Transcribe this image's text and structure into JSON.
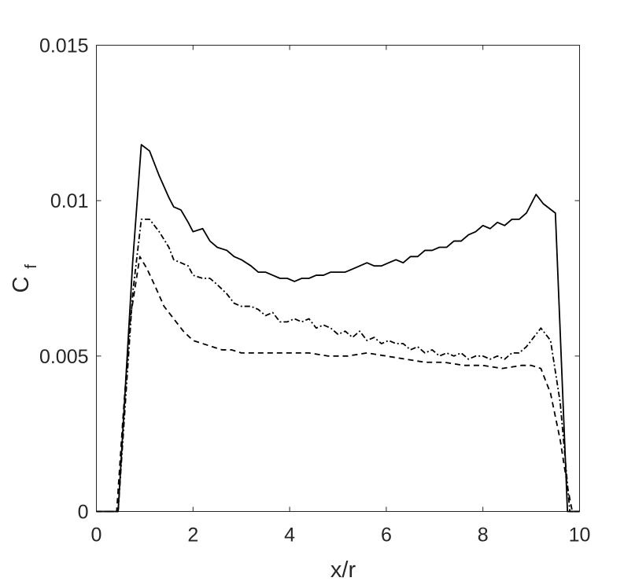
{
  "chart_data": {
    "type": "line",
    "title": "",
    "xlabel": "x/r",
    "ylabel_main": "C",
    "ylabel_sub": "f",
    "xlim": [
      0,
      10
    ],
    "ylim": [
      0,
      0.015
    ],
    "xticks": [
      0,
      2,
      4,
      6,
      8,
      10
    ],
    "xtick_labels": [
      "0",
      "2",
      "4",
      "6",
      "8",
      "10"
    ],
    "yticks": [
      0,
      0.005,
      0.01,
      0.015
    ],
    "ytick_labels": [
      "0",
      "0.005",
      "0.01",
      "0.015"
    ],
    "grid": false,
    "legend": "none",
    "line_color": "#000000",
    "series": [
      {
        "style": "solid",
        "x": [
          0.0,
          0.45,
          0.6,
          0.75,
          0.93,
          1.1,
          1.3,
          1.5,
          1.6,
          1.75,
          1.9,
          2.0,
          2.2,
          2.35,
          2.5,
          2.7,
          2.85,
          3.0,
          3.2,
          3.35,
          3.5,
          3.65,
          3.8,
          3.95,
          4.1,
          4.25,
          4.4,
          4.55,
          4.7,
          4.85,
          5.0,
          5.15,
          5.3,
          5.45,
          5.6,
          5.75,
          5.9,
          6.05,
          6.2,
          6.35,
          6.5,
          6.65,
          6.8,
          6.95,
          7.1,
          7.25,
          7.4,
          7.55,
          7.7,
          7.85,
          8.0,
          8.15,
          8.3,
          8.45,
          8.6,
          8.75,
          8.9,
          9.0,
          9.1,
          9.25,
          9.5,
          9.75,
          10.0
        ],
        "y": [
          0.0,
          0.0,
          0.004,
          0.008,
          0.0118,
          0.0116,
          0.0108,
          0.0101,
          0.0098,
          0.0097,
          0.0093,
          0.009,
          0.0091,
          0.0087,
          0.0085,
          0.0084,
          0.0082,
          0.0081,
          0.0079,
          0.0077,
          0.0077,
          0.0076,
          0.0075,
          0.0075,
          0.0074,
          0.0075,
          0.0075,
          0.0076,
          0.0076,
          0.0077,
          0.0077,
          0.0077,
          0.0078,
          0.0079,
          0.008,
          0.0079,
          0.0079,
          0.008,
          0.0081,
          0.008,
          0.0082,
          0.0082,
          0.0084,
          0.0084,
          0.0085,
          0.0085,
          0.0087,
          0.0087,
          0.0089,
          0.009,
          0.0092,
          0.0091,
          0.0093,
          0.0092,
          0.0094,
          0.0094,
          0.0096,
          0.0099,
          0.0102,
          0.0099,
          0.0096,
          0.0,
          0.0
        ]
      },
      {
        "style": "dashdot",
        "x": [
          0.0,
          0.45,
          0.6,
          0.75,
          0.93,
          1.1,
          1.3,
          1.5,
          1.6,
          1.75,
          1.9,
          2.0,
          2.2,
          2.35,
          2.5,
          2.7,
          2.85,
          3.0,
          3.2,
          3.35,
          3.5,
          3.65,
          3.8,
          3.95,
          4.1,
          4.25,
          4.4,
          4.55,
          4.7,
          4.85,
          5.0,
          5.15,
          5.3,
          5.45,
          5.6,
          5.75,
          5.9,
          6.05,
          6.2,
          6.35,
          6.5,
          6.65,
          6.8,
          6.95,
          7.1,
          7.25,
          7.4,
          7.55,
          7.7,
          7.85,
          8.0,
          8.15,
          8.3,
          8.45,
          8.6,
          8.75,
          8.9,
          9.0,
          9.1,
          9.2,
          9.4,
          9.6,
          9.8,
          10.0
        ],
        "y": [
          0.0,
          0.0,
          0.0035,
          0.007,
          0.0094,
          0.0094,
          0.009,
          0.0085,
          0.0081,
          0.008,
          0.0079,
          0.0076,
          0.0075,
          0.0075,
          0.0073,
          0.007,
          0.0067,
          0.0066,
          0.0066,
          0.0065,
          0.0063,
          0.0064,
          0.0061,
          0.0061,
          0.0062,
          0.0061,
          0.0062,
          0.0059,
          0.006,
          0.0059,
          0.0057,
          0.0058,
          0.0056,
          0.0058,
          0.0055,
          0.0056,
          0.0054,
          0.0055,
          0.0054,
          0.0054,
          0.0052,
          0.0053,
          0.0051,
          0.0052,
          0.005,
          0.0051,
          0.005,
          0.0051,
          0.0049,
          0.005,
          0.005,
          0.0049,
          0.005,
          0.0049,
          0.0051,
          0.0051,
          0.0053,
          0.0055,
          0.0057,
          0.0059,
          0.0055,
          0.0035,
          0.0,
          0.0
        ]
      },
      {
        "style": "dashed",
        "x": [
          0.0,
          0.42,
          0.55,
          0.7,
          0.9,
          1.05,
          1.2,
          1.4,
          1.6,
          1.8,
          2.0,
          2.2,
          2.4,
          2.6,
          2.8,
          3.0,
          3.3,
          3.6,
          4.0,
          4.4,
          4.8,
          5.2,
          5.6,
          6.0,
          6.4,
          6.8,
          7.2,
          7.6,
          8.0,
          8.4,
          8.8,
          9.0,
          9.2,
          9.4,
          9.6,
          9.75,
          9.85,
          10.0
        ],
        "y": [
          0.0,
          0.0,
          0.003,
          0.0062,
          0.0082,
          0.0078,
          0.0073,
          0.0066,
          0.0062,
          0.0058,
          0.0055,
          0.0054,
          0.0053,
          0.0052,
          0.0052,
          0.0051,
          0.0051,
          0.0051,
          0.0051,
          0.0051,
          0.005,
          0.005,
          0.0051,
          0.005,
          0.0049,
          0.0048,
          0.0048,
          0.0047,
          0.0047,
          0.0046,
          0.0047,
          0.0047,
          0.0046,
          0.0038,
          0.0023,
          0.0008,
          0.0,
          0.0
        ]
      }
    ]
  }
}
